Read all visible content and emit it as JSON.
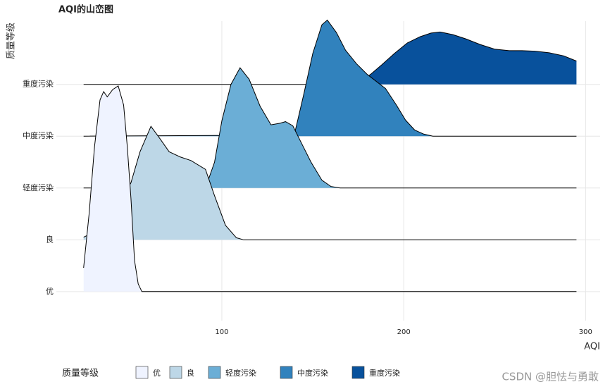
{
  "chart_data": {
    "type": "ridgeline",
    "title": "AQI的山峦图",
    "x_label": "AQI",
    "y_label": "质量等级",
    "legend_title": "质量等级",
    "watermark": "CSDN @胆怯与勇敢",
    "categories": [
      "优",
      "良",
      "轻度污染",
      "中度污染",
      "重度污染"
    ],
    "xlim": [
      9,
      308
    ],
    "xticks": [
      100,
      200,
      300
    ],
    "ylim": [
      -0.56,
      5.22
    ],
    "grid": true,
    "legend": "bottom",
    "series": [
      {
        "name": "优",
        "color": "#eff3ff",
        "x": [
          24,
          27,
          30,
          33,
          35,
          37,
          40,
          43,
          46,
          48,
          50,
          52,
          54,
          56,
          295
        ],
        "values": [
          0.46,
          1.5,
          2.8,
          3.7,
          3.86,
          3.76,
          3.9,
          3.97,
          3.6,
          2.8,
          1.8,
          0.6,
          0.15,
          0,
          0
        ]
      },
      {
        "name": "良",
        "color": "#bdd7e7",
        "x": [
          24,
          30,
          40,
          45,
          50,
          55,
          61,
          66,
          71,
          77,
          83,
          91,
          96,
          102,
          108,
          112,
          295
        ],
        "values": [
          0.05,
          0.15,
          0.5,
          0.8,
          1.1,
          1.7,
          2.19,
          1.95,
          1.7,
          1.6,
          1.53,
          1.36,
          0.85,
          0.28,
          0.04,
          0,
          0
        ]
      },
      {
        "name": "轻度污染",
        "color": "#6baed6",
        "x": [
          24,
          85,
          92,
          96,
          100,
          105,
          110,
          115,
          121,
          127,
          132,
          135,
          139,
          144,
          149,
          155,
          160,
          165,
          295
        ],
        "values": [
          0,
          0.02,
          0.1,
          0.5,
          1.3,
          2.0,
          2.32,
          2.1,
          1.58,
          1.22,
          1.25,
          1.28,
          1.2,
          0.85,
          0.5,
          0.15,
          0.03,
          0,
          0
        ]
      },
      {
        "name": "中度污染",
        "color": "#3182bd",
        "x": [
          24,
          135,
          140,
          145,
          150,
          155,
          158,
          163,
          168,
          174,
          180,
          190,
          196,
          201,
          206,
          211,
          216,
          295
        ],
        "values": [
          0,
          0.02,
          0.05,
          0.8,
          1.6,
          2.15,
          2.24,
          2.0,
          1.66,
          1.4,
          1.19,
          0.92,
          0.6,
          0.31,
          0.12,
          0.04,
          0,
          0
        ]
      },
      {
        "name": "重度污染",
        "color": "#08519c",
        "x": [
          24,
          170,
          176,
          182,
          188,
          195,
          202,
          209,
          215,
          220,
          227,
          234,
          242,
          250,
          258,
          265,
          272,
          280,
          288,
          295
        ],
        "values": [
          0,
          0,
          0.05,
          0.2,
          0.38,
          0.6,
          0.8,
          0.92,
          0.99,
          1.01,
          0.96,
          0.88,
          0.77,
          0.68,
          0.65,
          0.65,
          0.64,
          0.61,
          0.55,
          0.45
        ]
      }
    ]
  }
}
